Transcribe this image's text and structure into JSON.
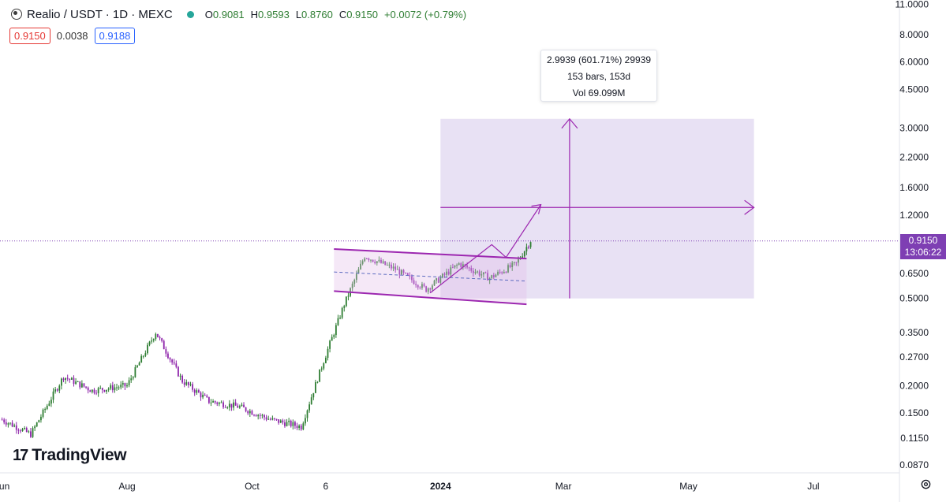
{
  "header": {
    "symbol": "Realio / USDT · 1D · MEXC",
    "open_label": "O",
    "open": "0.9081",
    "high_label": "H",
    "high": "0.9593",
    "low_label": "L",
    "low": "0.8760",
    "close_label": "C",
    "close": "0.9150",
    "change": "+0.0072 (+0.79%)"
  },
  "quote": {
    "bid": "0.9150",
    "spread": "0.0038",
    "ask": "0.9188"
  },
  "measure": {
    "line1": "2.9939 (601.71%) 29939",
    "line2": "153 bars, 153d",
    "line3": "Vol 69.099M"
  },
  "last_price": {
    "price": "0.9150",
    "countdown": "13:06:22"
  },
  "logo": {
    "text": "TradingView"
  },
  "colors": {
    "up": "#26a69a",
    "up_candle": "#2e7d32",
    "down_candle": "#8e24aa",
    "accent": "#9c27b0",
    "label": "#7e3fb3"
  },
  "chart_data": {
    "type": "candlestick",
    "y_scale": "log",
    "y_tick_labels": [
      "11.0000",
      "8.0000",
      "6.0000",
      "4.5000",
      "3.0000",
      "2.2000",
      "1.6000",
      "1.2000",
      "0.6500",
      "0.5000",
      "0.3500",
      "0.2700",
      "0.2000",
      "0.1500",
      "0.1150",
      "0.0870"
    ],
    "y_ticks": [
      11.0,
      8.0,
      6.0,
      4.5,
      3.0,
      2.2,
      1.6,
      1.2,
      0.65,
      0.5,
      0.35,
      0.27,
      0.2,
      0.15,
      0.115,
      0.087
    ],
    "ylim": [
      0.08,
      11.5
    ],
    "x_tick_labels": [
      "Jun",
      "Aug",
      "Oct",
      "6",
      "2024",
      "Mar",
      "May",
      "Jul"
    ],
    "x_ticks": [
      "2023-06-01",
      "2023-08-01",
      "2023-10-01",
      "2023-11-06",
      "2024-01-01",
      "2024-03-01",
      "2024-05-01",
      "2024-07-01"
    ],
    "x_range": [
      "2023-05-31",
      "2024-08-12"
    ],
    "series": [
      {
        "x": [
          "2023-06-01",
          "2023-06-15",
          "2023-07-01",
          "2023-07-15",
          "2023-08-01",
          "2023-08-15",
          "2023-08-28",
          "2023-09-10",
          "2023-09-25",
          "2023-10-10",
          "2023-10-25",
          "2023-11-05",
          "2023-11-15",
          "2023-11-25",
          "2023-12-10",
          "2023-12-25",
          "2024-01-10",
          "2024-01-25",
          "2024-02-07",
          "2024-02-14"
        ],
        "values": [
          0.14,
          0.12,
          0.22,
          0.19,
          0.2,
          0.35,
          0.21,
          0.17,
          0.16,
          0.14,
          0.13,
          0.26,
          0.47,
          0.78,
          0.68,
          0.55,
          0.72,
          0.62,
          0.72,
          0.92
        ]
      }
    ],
    "annotations": {
      "channel_upper": [
        [
          "2023-11-10",
          0.84
        ],
        [
          "2024-02-12",
          0.76
        ]
      ],
      "channel_lower": [
        [
          "2023-11-10",
          0.54
        ],
        [
          "2024-02-12",
          0.47
        ]
      ],
      "channel_mid": [
        [
          "2023-11-10",
          0.66
        ],
        [
          "2024-02-12",
          0.6
        ]
      ],
      "projection": [
        [
          "2023-12-27",
          0.53
        ],
        [
          "2024-01-26",
          0.88
        ],
        [
          "2024-02-02",
          0.77
        ],
        [
          "2024-02-19",
          1.34
        ]
      ],
      "measure_box": {
        "x0": "2024-01-01",
        "x1": "2024-06-02",
        "y0": 0.5,
        "y1": 3.3
      },
      "measure_cross": {
        "x": "2024-03-04",
        "y": 1.3
      },
      "current_price": 0.915
    }
  }
}
